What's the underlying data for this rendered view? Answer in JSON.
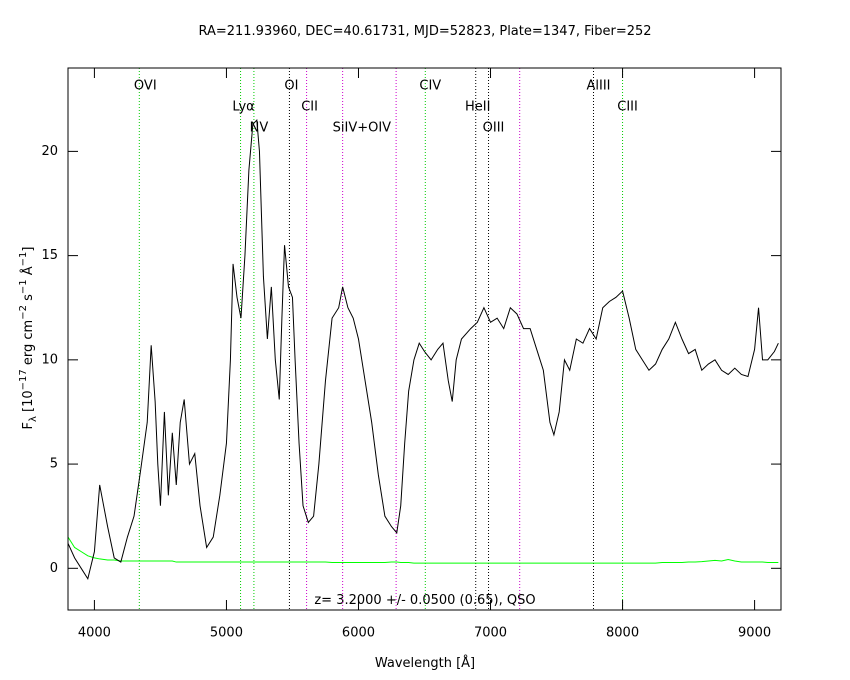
{
  "chart_data": {
    "type": "line",
    "title": "RA=211.93960, DEC=40.61731, MJD=52823, Plate=1347, Fiber=252",
    "x_label": "Wavelength [Å]",
    "y_label": [
      {
        "text": "F"
      },
      {
        "text": "λ",
        "shift": "sub"
      },
      {
        "text": " [10"
      },
      {
        "text": "−17",
        "shift": "sup"
      },
      {
        "text": " erg cm"
      },
      {
        "text": "−2",
        "shift": "sup"
      },
      {
        "text": " s"
      },
      {
        "text": "−1",
        "shift": "sup"
      },
      {
        "text": " Å"
      },
      {
        "text": "−1",
        "shift": "sup"
      },
      {
        "text": "]"
      }
    ],
    "annotation": "z= 3.2000 +/- 0.0500 (0.65), QSO",
    "xlim": [
      3800,
      9200
    ],
    "ylim": [
      -2,
      24
    ],
    "xticks": [
      4000,
      5000,
      6000,
      7000,
      8000,
      9000
    ],
    "yticks": [
      0,
      5,
      10,
      15,
      20
    ],
    "x": [
      3800,
      3850,
      3900,
      3950,
      4000,
      4040,
      4100,
      4150,
      4200,
      4250,
      4300,
      4350,
      4400,
      4430,
      4460,
      4480,
      4500,
      4530,
      4560,
      4590,
      4620,
      4650,
      4680,
      4720,
      4760,
      4800,
      4850,
      4900,
      4950,
      5000,
      5030,
      5050,
      5080,
      5110,
      5140,
      5170,
      5200,
      5230,
      5250,
      5280,
      5310,
      5340,
      5370,
      5400,
      5420,
      5440,
      5470,
      5500,
      5520,
      5550,
      5580,
      5620,
      5660,
      5700,
      5750,
      5800,
      5850,
      5880,
      5920,
      5960,
      6000,
      6050,
      6100,
      6150,
      6200,
      6250,
      6290,
      6320,
      6350,
      6380,
      6420,
      6460,
      6500,
      6550,
      6600,
      6640,
      6680,
      6710,
      6740,
      6780,
      6850,
      6900,
      6950,
      7000,
      7050,
      7100,
      7150,
      7200,
      7250,
      7300,
      7350,
      7400,
      7450,
      7480,
      7520,
      7560,
      7600,
      7650,
      7700,
      7750,
      7800,
      7850,
      7900,
      7950,
      8000,
      8050,
      8100,
      8150,
      8200,
      8250,
      8300,
      8350,
      8400,
      8450,
      8500,
      8550,
      8600,
      8650,
      8700,
      8750,
      8800,
      8850,
      8900,
      8950,
      9000,
      9030,
      9060,
      9100,
      9150,
      9180
    ],
    "series": [
      {
        "color": "#000000",
        "values": [
          1.2,
          0.5,
          0,
          -0.5,
          0.8,
          4.0,
          2.0,
          0.5,
          0.3,
          1.5,
          2.5,
          4.7,
          7,
          10.7,
          8,
          5,
          3,
          7.5,
          3.5,
          6.5,
          4,
          7,
          8.1,
          5,
          5.5,
          3,
          1,
          1.5,
          3.5,
          6,
          10,
          14.6,
          13,
          12,
          15,
          19.1,
          21.3,
          21.5,
          20,
          14,
          11,
          13.5,
          10,
          8.1,
          12,
          15.5,
          13.5,
          13,
          10,
          6,
          3,
          2.2,
          2.5,
          5,
          9,
          12,
          12.5,
          13.5,
          12.5,
          12,
          11,
          9,
          7,
          4.5,
          2.5,
          2,
          1.7,
          3,
          6,
          8.5,
          10,
          10.8,
          10.4,
          10,
          10.5,
          10.8,
          9,
          8,
          10,
          11,
          11.5,
          11.8,
          12.5,
          11.8,
          12,
          11.5,
          12.5,
          12.2,
          11.5,
          11.5,
          10.5,
          9.5,
          7,
          6.4,
          7.5,
          10,
          9.5,
          11,
          10.8,
          11.5,
          11,
          12.5,
          12.8,
          13,
          13.3,
          12,
          10.5,
          10,
          9.5,
          9.8,
          10.5,
          11,
          11.8,
          11,
          10.3,
          10.5,
          9.5,
          9.8,
          10,
          9.5,
          9.3,
          9.6,
          9.3,
          9.2,
          10.5,
          12.5,
          10,
          10,
          10.4,
          10.8
        ]
      },
      {
        "color": "#00ff00",
        "values": [
          1.5,
          1.0,
          0.8,
          0.6,
          0.5,
          0.45,
          0.4,
          0.4,
          0.35,
          0.35,
          0.35,
          0.35,
          0.35,
          0.35,
          0.35,
          0.35,
          0.35,
          0.35,
          0.35,
          0.35,
          0.3,
          0.3,
          0.3,
          0.3,
          0.3,
          0.3,
          0.3,
          0.3,
          0.3,
          0.3,
          0.3,
          0.3,
          0.3,
          0.3,
          0.3,
          0.3,
          0.3,
          0.3,
          0.3,
          0.3,
          0.3,
          0.3,
          0.3,
          0.3,
          0.3,
          0.3,
          0.3,
          0.3,
          0.3,
          0.3,
          0.3,
          0.3,
          0.3,
          0.3,
          0.3,
          0.28,
          0.28,
          0.28,
          0.28,
          0.28,
          0.28,
          0.28,
          0.28,
          0.28,
          0.28,
          0.3,
          0.3,
          0.28,
          0.28,
          0.28,
          0.25,
          0.25,
          0.25,
          0.25,
          0.25,
          0.25,
          0.25,
          0.25,
          0.25,
          0.25,
          0.25,
          0.25,
          0.25,
          0.25,
          0.25,
          0.25,
          0.25,
          0.25,
          0.25,
          0.25,
          0.25,
          0.25,
          0.25,
          0.25,
          0.25,
          0.25,
          0.25,
          0.25,
          0.25,
          0.25,
          0.25,
          0.25,
          0.25,
          0.25,
          0.25,
          0.25,
          0.25,
          0.25,
          0.25,
          0.25,
          0.28,
          0.28,
          0.28,
          0.28,
          0.3,
          0.3,
          0.32,
          0.35,
          0.38,
          0.35,
          0.42,
          0.35,
          0.3,
          0.3,
          0.3,
          0.3,
          0.3,
          0.28,
          0.28,
          0.28
        ]
      }
    ],
    "lines": [
      {
        "label": "OVI",
        "x": 4340,
        "color": "#00cc00"
      },
      {
        "label": "Lyα",
        "x": 5107,
        "color": "#00cc00"
      },
      {
        "label": "NV",
        "x": 5208,
        "color": "#00cc00"
      },
      {
        "label": "OI",
        "x": 5477,
        "color": "#000000"
      },
      {
        "label": "CII",
        "x": 5607,
        "color": "#cc00cc"
      },
      {
        "label": "SiIV+OIV",
        "x": 5880,
        "color": "#cc00cc"
      },
      {
        "label": null,
        "x": 6285,
        "color": "#cc00cc"
      },
      {
        "label": "CIV",
        "x": 6506,
        "color": "#00cc00"
      },
      {
        "label": "HeII",
        "x": 6888,
        "color": "#000000"
      },
      {
        "label": "OIII",
        "x": 6985,
        "color": "#000000"
      },
      {
        "label": null,
        "x": 7221,
        "color": "#cc00cc"
      },
      {
        "label": "AlIII",
        "x": 7780,
        "color": "#000000"
      },
      {
        "label": "CIII",
        "x": 8000,
        "color": "#00cc00"
      }
    ]
  }
}
